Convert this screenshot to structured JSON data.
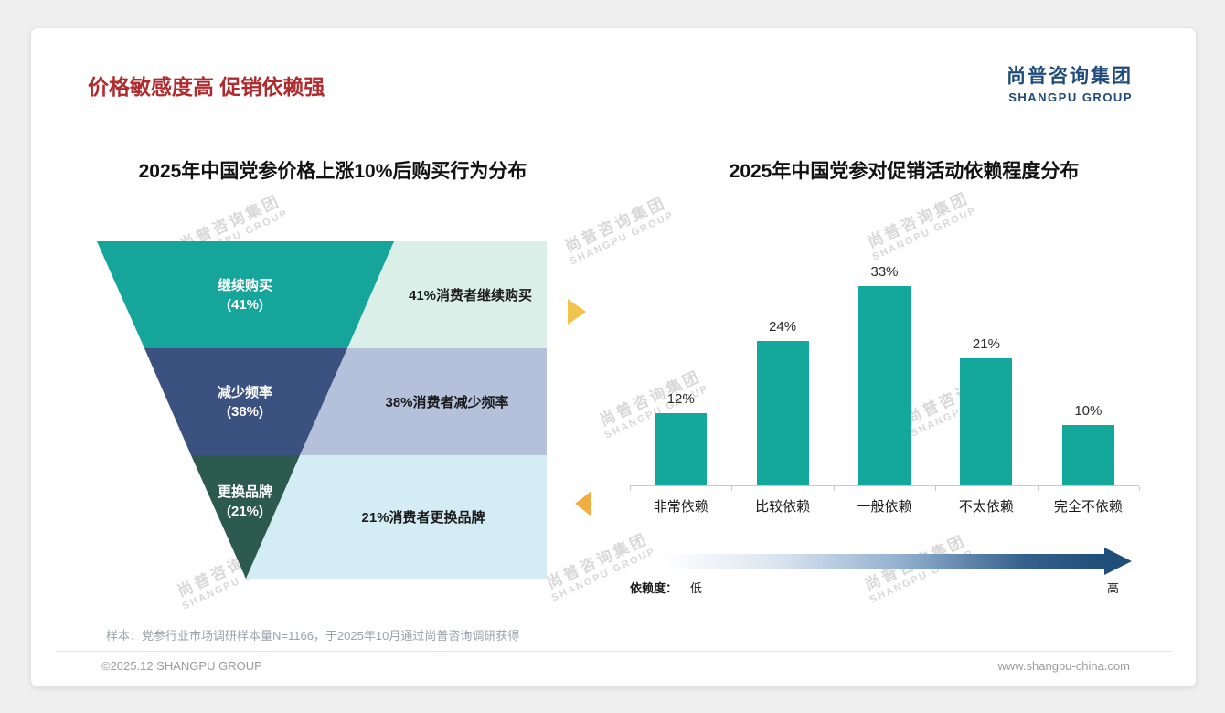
{
  "slide": {
    "title": "价格敏感度高 促销依赖强",
    "logo": {
      "cn": "尚普咨询集团",
      "en": "SHANGPU GROUP"
    },
    "watermark": {
      "cn": "尚普咨询集团",
      "en": "SHANGPU GROUP"
    },
    "note": "样本：党参行业市场调研样本量N=1166，于2025年10月通过尚普咨询调研获得",
    "footer": {
      "left": "©2025.12 SHANGPU GROUP",
      "right": "www.shangpu-china.com"
    },
    "colors": {
      "title_red": "#B02B2E",
      "logo_navy": "#1F4B7B",
      "arrow_yellow": "#F2C44B",
      "arrow_orange": "#EFAE3F",
      "gradient_end_navy": "#1F4E79"
    }
  },
  "chart_data": [
    {
      "type": "funnel",
      "title": "2025年中国党参价格上涨10%后购买行为分布",
      "levels": [
        {
          "name": "继续购买",
          "pct_label": "(41%)",
          "value": 41,
          "annotation": "41%消费者继续购买",
          "color": "#16A59A",
          "bg_color": "#DBEFE9"
        },
        {
          "name": "减少频率",
          "pct_label": "(38%)",
          "value": 38,
          "annotation": "38%消费者减少频率",
          "color": "#3B5180",
          "bg_color": "#B5C1DB"
        },
        {
          "name": "更换品牌",
          "pct_label": "(21%)",
          "value": 21,
          "annotation": "21%消费者更换品牌",
          "color": "#2D5A4E",
          "bg_color": "#D4EDF4"
        }
      ]
    },
    {
      "type": "bar",
      "title": "2025年中国党参对促销活动依赖程度分布",
      "categories": [
        "非常依赖",
        "比较依赖",
        "一般依赖",
        "不太依赖",
        "完全不依赖"
      ],
      "values": [
        12,
        24,
        33,
        21,
        10
      ],
      "unit": "%",
      "bar_color": "#14A79B",
      "ylim": [
        0,
        38
      ],
      "grid": false,
      "legend": "none",
      "axis": {
        "label": "依赖度：",
        "low": "低",
        "high": "高"
      }
    }
  ]
}
